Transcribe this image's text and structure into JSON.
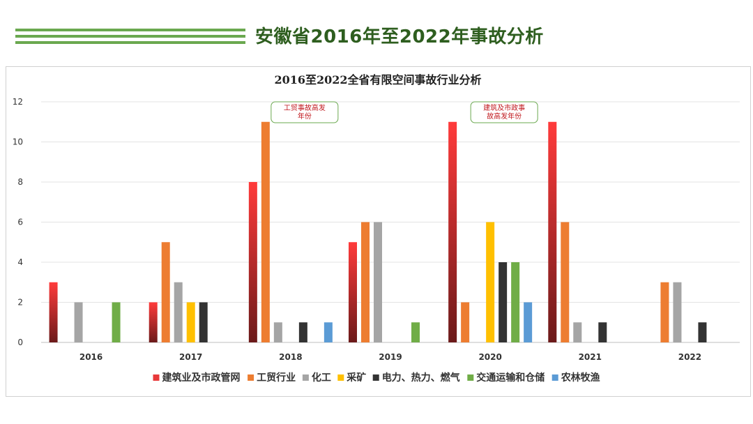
{
  "header": {
    "title": "安徽省2016年至2022年事故分析"
  },
  "colors": {
    "title_green": "#2e5e1f",
    "deco_green": "#6aa84f",
    "callout_border": "#6aa84f",
    "callout_text": "#c0171c"
  },
  "chart_data": {
    "type": "bar",
    "title": "2016至2022全省有限空间事故行业分析",
    "categories": [
      "2016",
      "2017",
      "2018",
      "2019",
      "2020",
      "2021",
      "2022"
    ],
    "ylim": [
      0,
      12
    ],
    "yticks": [
      0,
      2,
      4,
      6,
      8,
      10,
      12
    ],
    "grid": true,
    "legend_position": "bottom",
    "series": [
      {
        "name": "建筑业及市政管网",
        "color": "#e8393a",
        "gradient": true,
        "values": [
          3,
          2,
          8,
          5,
          11,
          11,
          0
        ]
      },
      {
        "name": "工贸行业",
        "color": "#ed7d31",
        "values": [
          0,
          5,
          11,
          6,
          2,
          6,
          3
        ]
      },
      {
        "name": "化工",
        "color": "#a5a5a5",
        "values": [
          2,
          3,
          1,
          6,
          0,
          1,
          3
        ]
      },
      {
        "name": "采矿",
        "color": "#ffc000",
        "values": [
          0,
          2,
          0,
          0,
          6,
          0,
          0
        ]
      },
      {
        "name": "电力、热力、燃气",
        "color": "#333333",
        "values": [
          0,
          2,
          1,
          0,
          4,
          1,
          1
        ]
      },
      {
        "name": "交通运输和仓储",
        "color": "#70ad47",
        "values": [
          2,
          0,
          0,
          1,
          4,
          0,
          0
        ]
      },
      {
        "name": "农林牧渔",
        "color": "#5b9bd5",
        "values": [
          0,
          0,
          1,
          0,
          2,
          0,
          0
        ]
      }
    ],
    "annotations": [
      {
        "category": "2018",
        "lines": [
          "工贸事故高发",
          "年份"
        ]
      },
      {
        "category": "2020",
        "lines": [
          "建筑及市政事",
          "故高发年份"
        ]
      }
    ]
  }
}
